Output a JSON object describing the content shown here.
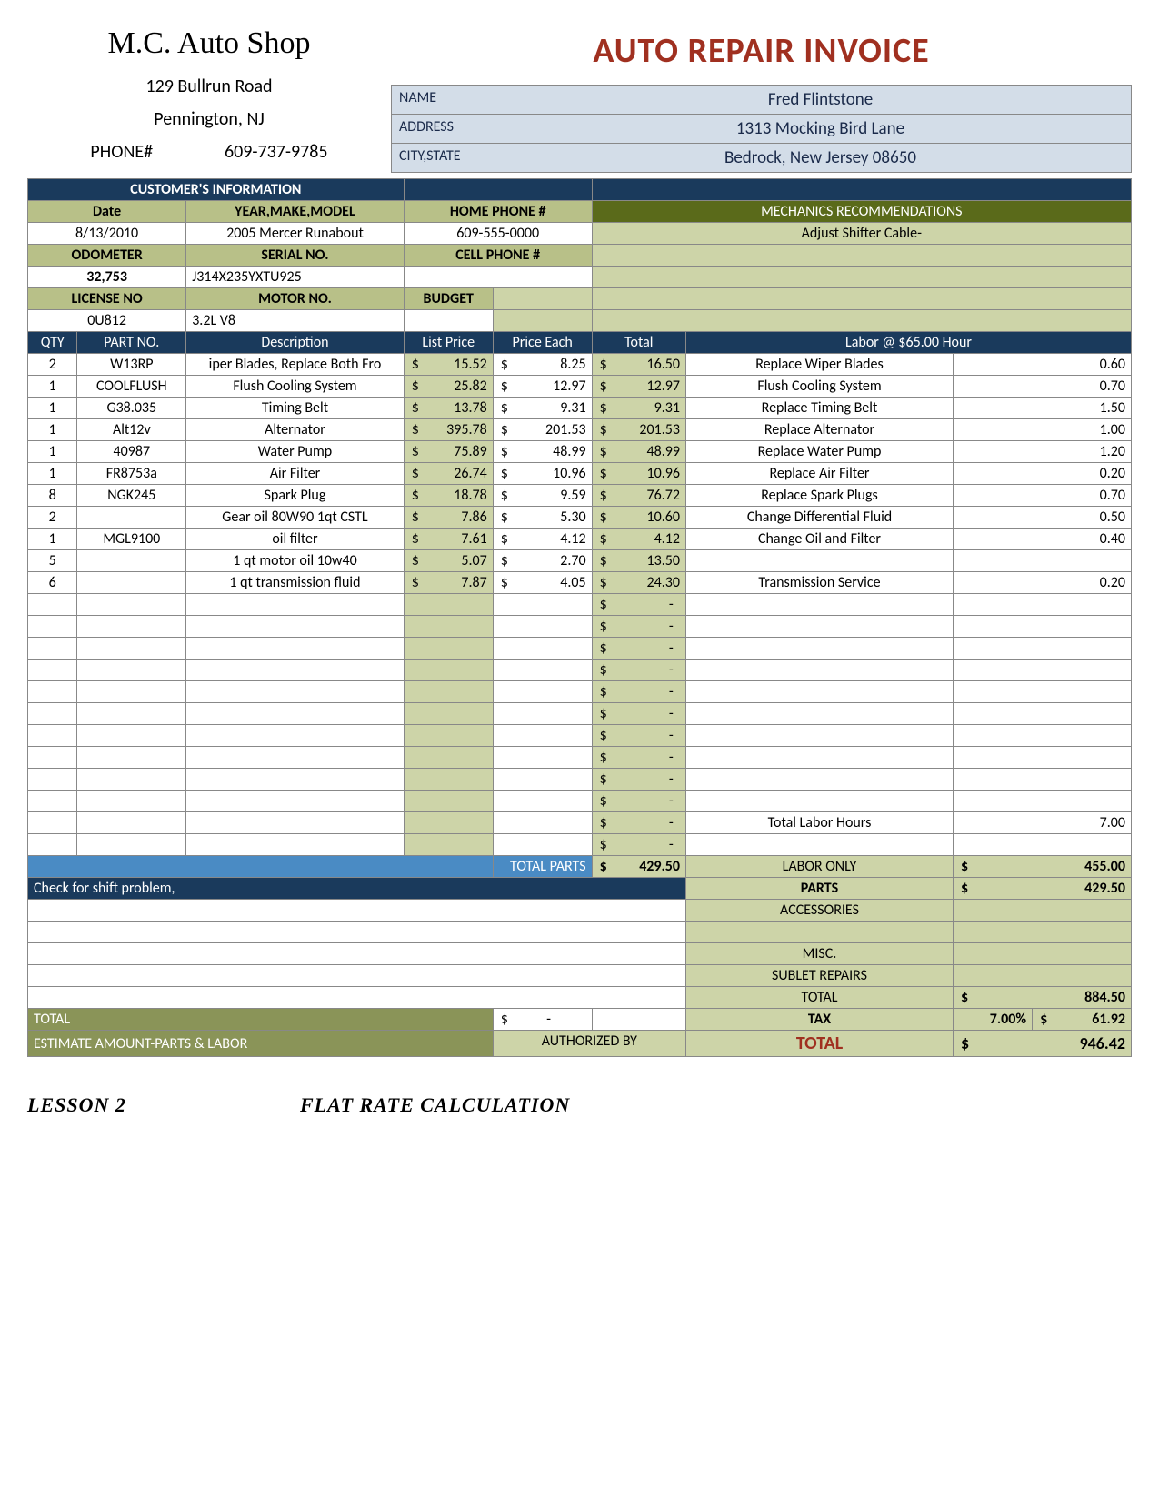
{
  "shop": {
    "name": "M.C. Auto Shop",
    "addr1": "129 Bullrun Road",
    "addr2": "Pennington, NJ",
    "phone_label": "PHONE#",
    "phone": "609-737-9785"
  },
  "title": "AUTO REPAIR INVOICE",
  "customer": {
    "name_label": "NAME",
    "name": "Fred Flintstone",
    "addr_label": "ADDRESS",
    "addr": "1313 Mocking Bird Lane",
    "city_label": "CITY,STATE",
    "city": "Bedrock, New Jersey  08650"
  },
  "info_hdr": "CUSTOMER'S INFORMATION",
  "mech_hdr": "MECHANICS RECOMMENDATIONS",
  "labels": {
    "date": "Date",
    "ymm": "YEAR,MAKE,MODEL",
    "home": "HOME PHONE #",
    "odo": "ODOMETER",
    "serial": "SERIAL NO.",
    "cell": "CELL PHONE #",
    "lic": "LICENSE NO",
    "motor": "MOTOR NO.",
    "budget": "BUDGET"
  },
  "info": {
    "date": "8/13/2010",
    "ymm": "2005 Mercer Runabout",
    "home": "609-555-0000",
    "odo": "32,753",
    "serial": "J314X235YXTU925",
    "lic": "0U812",
    "motor": "3.2L V8",
    "mech_rec": "Adjust Shifter Cable-"
  },
  "item_hdrs": {
    "qty": "QTY",
    "part": "PART NO.",
    "desc": "Description",
    "list": "List Price",
    "each": "Price Each",
    "total": "Total",
    "labor": "Labor @ $65.00 Hour"
  },
  "items": [
    {
      "qty": "2",
      "part": "W13RP",
      "desc": "iper Blades, Replace  Both Fro",
      "list": "15.52",
      "each": "8.25",
      "total": "16.50",
      "labor": "Replace Wiper Blades",
      "hrs": "0.60"
    },
    {
      "qty": "1",
      "part": "COOLFLUSH",
      "desc": "Flush Cooling System",
      "list": "25.82",
      "each": "12.97",
      "total": "12.97",
      "labor": "Flush Cooling System",
      "hrs": "0.70"
    },
    {
      "qty": "1",
      "part": "G38.035",
      "desc": "Timing Belt",
      "list": "13.78",
      "each": "9.31",
      "total": "9.31",
      "labor": "Replace Timing Belt",
      "hrs": "1.50"
    },
    {
      "qty": "1",
      "part": "Alt12v",
      "desc": "Alternator",
      "list": "395.78",
      "each": "201.53",
      "total": "201.53",
      "labor": "Replace Alternator",
      "hrs": "1.00"
    },
    {
      "qty": "1",
      "part": "40987",
      "desc": "Water Pump",
      "list": "75.89",
      "each": "48.99",
      "total": "48.99",
      "labor": "Replace Water Pump",
      "hrs": "1.20"
    },
    {
      "qty": "1",
      "part": "FR8753a",
      "desc": "Air Filter",
      "list": "26.74",
      "each": "10.96",
      "total": "10.96",
      "labor": "Replace Air Filter",
      "hrs": "0.20"
    },
    {
      "qty": "8",
      "part": "NGK245",
      "desc": "Spark Plug",
      "list": "18.78",
      "each": "9.59",
      "total": "76.72",
      "labor": "Replace Spark Plugs",
      "hrs": "0.70"
    },
    {
      "qty": "2",
      "part": "",
      "desc": "Gear oil 80W90 1qt CSTL",
      "list": "7.86",
      "each": "5.30",
      "total": "10.60",
      "labor": "Change Differential Fluid",
      "hrs": "0.50"
    },
    {
      "qty": "1",
      "part": "MGL9100",
      "desc": "oil filter",
      "list": "7.61",
      "each": "4.12",
      "total": "4.12",
      "labor": "Change Oil and Filter",
      "hrs": "0.40"
    },
    {
      "qty": "5",
      "part": "",
      "desc": "1 qt motor oil 10w40",
      "list": "5.07",
      "each": "2.70",
      "total": "13.50",
      "labor": "",
      "hrs": ""
    },
    {
      "qty": "6",
      "part": "",
      "desc": "1 qt transmission fluid",
      "list": "7.87",
      "each": "4.05",
      "total": "24.30",
      "labor": "Transmission Service",
      "hrs": "0.20"
    }
  ],
  "empty_count": 12,
  "totals": {
    "total_parts_label": "TOTAL PARTS",
    "total_parts": "429.50",
    "note": "Check for shift problem,",
    "labor_hrs_label": "Total Labor Hours",
    "labor_hrs": "7.00",
    "labor_only_label": "LABOR ONLY",
    "labor_only": "455.00",
    "parts_label": "PARTS",
    "parts": "429.50",
    "acc_label": "ACCESSORIES",
    "misc_label": "MISC.",
    "sublet_label": "SUBLET REPAIRS",
    "subtotal_label": "TOTAL",
    "subtotal": "884.50",
    "total_label": "TOTAL",
    "tax_label": "TAX",
    "tax_pct": "7.00%",
    "tax": "61.92",
    "grand_label": "TOTAL",
    "grand": "946.42",
    "est_label": "ESTIMATE AMOUNT-PARTS & LABOR",
    "auth_label": "AUTHORIZED BY",
    "bottom_total": "TOTAL"
  },
  "footer": {
    "lesson": "LESSON 2",
    "title": "FLAT RATE CALCULATION"
  },
  "colors": {
    "navy": "#1a3a5c",
    "olive_hdr": "#b8c088",
    "olive_light": "#cdd4a8",
    "olive_dark": "#8a9458",
    "blue_light": "#d3dde8",
    "blue_med": "#4a8bc4",
    "red": "#a03020",
    "border": "#888888"
  }
}
